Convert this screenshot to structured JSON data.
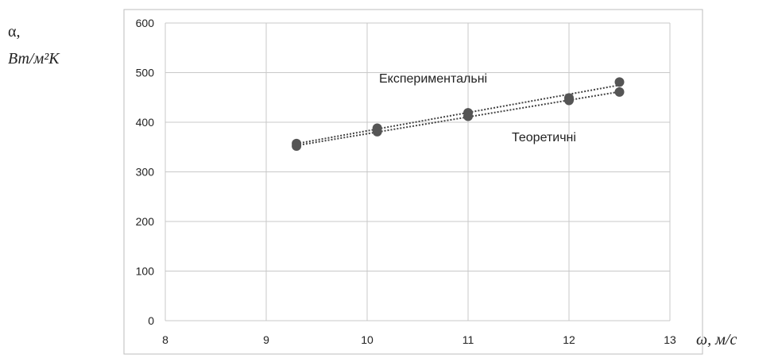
{
  "chart_data": {
    "type": "scatter",
    "xlim": [
      8,
      13
    ],
    "ylim": [
      0,
      600
    ],
    "xticks": [
      8,
      9,
      10,
      11,
      12,
      13
    ],
    "yticks": [
      0,
      100,
      200,
      300,
      400,
      500,
      600
    ],
    "grid": true,
    "ylabel_line1": "α,",
    "ylabel_line2": "Вт/м²К",
    "xlabel": "ω, м/с",
    "series": [
      {
        "name": "Експериментальні",
        "color": "#555555",
        "x": [
          9.3,
          10.1,
          11.0,
          12.0,
          12.5
        ],
        "y": [
          357,
          388,
          419,
          449,
          481
        ]
      },
      {
        "name": "Теоретичні",
        "color": "#555555",
        "x": [
          9.3,
          10.1,
          11.0,
          12.0,
          12.5
        ],
        "y": [
          352,
          381,
          412,
          444,
          461
        ]
      }
    ]
  }
}
